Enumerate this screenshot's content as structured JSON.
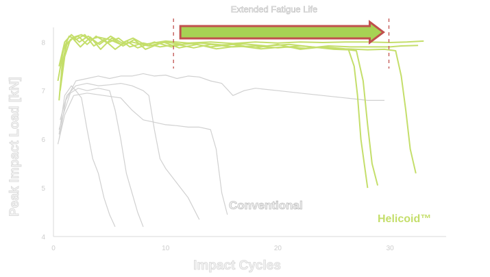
{
  "chart_data": {
    "type": "line",
    "annotation_title": "Extended Fatigue Life",
    "xlabel": "Impact Cycles",
    "ylabel": "Peak Impact Load [kN]",
    "xlim": [
      0,
      35
    ],
    "ylim": [
      4,
      8.3
    ],
    "x_ticks": [
      0,
      10,
      20,
      30
    ],
    "x_tick_labels": [
      "0",
      "10",
      "20",
      "30"
    ],
    "y_ticks": [
      4,
      5,
      6,
      7,
      8
    ],
    "y_tick_labels": [
      "4",
      "5",
      "6",
      "7",
      "8"
    ],
    "vlines": [
      10.7,
      29.9
    ],
    "labels": {
      "conventional": "Conventional",
      "helicoid": "Helicoid™"
    },
    "colors": {
      "helicoid": "#c4de6a",
      "conventional": "#d0d0d0",
      "arrow_fill": "#a7d254",
      "arrow_stroke": "#c0504d",
      "vline": "#c0504d"
    },
    "series": [
      {
        "group": "helicoid",
        "points": [
          [
            0.5,
            6.8
          ],
          [
            0.8,
            7.6
          ],
          [
            1.2,
            7.95
          ],
          [
            1.8,
            8.1
          ],
          [
            2.5,
            8.15
          ],
          [
            3.2,
            8.05
          ],
          [
            4.0,
            8.1
          ],
          [
            5.0,
            8.05
          ],
          [
            6.0,
            7.95
          ],
          [
            7.0,
            8.0
          ],
          [
            8.5,
            7.92
          ],
          [
            10.0,
            8.0
          ],
          [
            11.5,
            7.95
          ],
          [
            13.0,
            7.98
          ],
          [
            15.0,
            7.94
          ],
          [
            17.0,
            7.96
          ],
          [
            19.0,
            7.92
          ],
          [
            21.0,
            7.95
          ],
          [
            23.0,
            7.9
          ],
          [
            25.0,
            7.85
          ],
          [
            26.3,
            7.84
          ],
          [
            26.8,
            7.5
          ],
          [
            27.1,
            6.9
          ],
          [
            27.4,
            6.0
          ],
          [
            27.7,
            5.5
          ],
          [
            28.0,
            5.0
          ]
        ]
      },
      {
        "group": "helicoid",
        "points": [
          [
            0.6,
            7.0
          ],
          [
            1.0,
            7.7
          ],
          [
            1.5,
            8.05
          ],
          [
            2.2,
            8.12
          ],
          [
            3.0,
            7.95
          ],
          [
            3.8,
            8.12
          ],
          [
            4.8,
            7.98
          ],
          [
            5.8,
            8.08
          ],
          [
            6.8,
            7.9
          ],
          [
            8.0,
            7.98
          ],
          [
            9.5,
            7.9
          ],
          [
            11.0,
            7.95
          ],
          [
            12.5,
            7.88
          ],
          [
            14.0,
            7.95
          ],
          [
            16.0,
            7.9
          ],
          [
            18.0,
            7.92
          ],
          [
            20.0,
            7.88
          ],
          [
            22.0,
            7.92
          ],
          [
            24.0,
            7.88
          ],
          [
            26.0,
            7.85
          ],
          [
            27.0,
            7.82
          ],
          [
            27.6,
            7.2
          ],
          [
            28.0,
            6.3
          ],
          [
            28.4,
            5.5
          ],
          [
            28.9,
            5.05
          ]
        ]
      },
      {
        "group": "helicoid",
        "points": [
          [
            0.4,
            7.2
          ],
          [
            0.9,
            7.85
          ],
          [
            1.4,
            8.12
          ],
          [
            2.0,
            8.05
          ],
          [
            2.8,
            8.15
          ],
          [
            3.6,
            7.92
          ],
          [
            4.5,
            8.05
          ],
          [
            5.5,
            7.85
          ],
          [
            6.5,
            8.02
          ],
          [
            7.5,
            7.88
          ],
          [
            9.0,
            8.0
          ],
          [
            10.5,
            7.9
          ],
          [
            12.0,
            7.98
          ],
          [
            14.0,
            7.9
          ],
          [
            16.0,
            7.95
          ],
          [
            18.0,
            7.88
          ],
          [
            20.0,
            7.95
          ],
          [
            22.0,
            7.85
          ],
          [
            24.0,
            7.9
          ],
          [
            26.0,
            7.86
          ],
          [
            28.0,
            7.84
          ],
          [
            29.5,
            7.85
          ],
          [
            30.5,
            7.82
          ],
          [
            31.0,
            7.3
          ],
          [
            31.4,
            6.6
          ],
          [
            31.8,
            5.8
          ],
          [
            32.3,
            5.3
          ]
        ]
      },
      {
        "group": "helicoid",
        "points": [
          [
            0.7,
            7.3
          ],
          [
            1.1,
            7.95
          ],
          [
            1.7,
            8.08
          ],
          [
            2.4,
            7.9
          ],
          [
            3.3,
            8.1
          ],
          [
            4.2,
            7.85
          ],
          [
            5.2,
            8.08
          ],
          [
            6.2,
            7.92
          ],
          [
            7.2,
            8.05
          ],
          [
            8.2,
            7.85
          ],
          [
            9.8,
            8.0
          ],
          [
            11.2,
            7.88
          ],
          [
            12.8,
            7.95
          ],
          [
            14.5,
            7.86
          ],
          [
            16.5,
            7.92
          ],
          [
            18.5,
            7.86
          ],
          [
            20.5,
            7.9
          ],
          [
            22.5,
            7.87
          ],
          [
            24.5,
            7.92
          ],
          [
            26.5,
            7.9
          ],
          [
            28.5,
            7.9
          ],
          [
            30.0,
            7.9
          ],
          [
            31.0,
            7.92
          ],
          [
            32.5,
            7.93
          ]
        ]
      },
      {
        "group": "helicoid",
        "points": [
          [
            0.5,
            7.5
          ],
          [
            1.0,
            8.0
          ],
          [
            1.6,
            8.15
          ],
          [
            2.3,
            8.0
          ],
          [
            3.1,
            8.12
          ],
          [
            4.1,
            7.95
          ],
          [
            5.1,
            8.12
          ],
          [
            6.1,
            7.98
          ],
          [
            7.1,
            8.08
          ],
          [
            8.1,
            7.95
          ],
          [
            10.0,
            8.02
          ],
          [
            12.0,
            7.98
          ],
          [
            14.0,
            8.0
          ],
          [
            16.0,
            7.97
          ],
          [
            18.0,
            8.0
          ],
          [
            20.0,
            7.98
          ],
          [
            22.0,
            8.0
          ],
          [
            24.0,
            7.99
          ],
          [
            26.0,
            8.0
          ],
          [
            28.0,
            8.0
          ],
          [
            30.0,
            7.99
          ],
          [
            31.5,
            8.0
          ],
          [
            33.0,
            8.02
          ]
        ]
      },
      {
        "group": "conventional",
        "points": [
          [
            0.5,
            6.2
          ],
          [
            1.0,
            6.6
          ],
          [
            1.5,
            6.95
          ],
          [
            2.2,
            7.05
          ],
          [
            3.0,
            7.0
          ],
          [
            4.0,
            7.05
          ],
          [
            5.0,
            7.0
          ],
          [
            5.5,
            6.6
          ],
          [
            6.0,
            6.0
          ],
          [
            6.5,
            5.3
          ],
          [
            7.0,
            4.9
          ],
          [
            7.5,
            4.5
          ],
          [
            8.0,
            4.2
          ]
        ]
      },
      {
        "group": "conventional",
        "points": [
          [
            0.6,
            6.4
          ],
          [
            1.2,
            6.9
          ],
          [
            2.0,
            7.1
          ],
          [
            3.0,
            7.15
          ],
          [
            4.0,
            7.1
          ],
          [
            5.0,
            7.12
          ],
          [
            6.0,
            7.15
          ],
          [
            7.0,
            7.1
          ],
          [
            8.0,
            7.0
          ],
          [
            8.5,
            6.9
          ],
          [
            9.0,
            6.2
          ],
          [
            9.5,
            5.6
          ],
          [
            10.0,
            5.4
          ],
          [
            11.0,
            5.1
          ],
          [
            12.0,
            4.8
          ],
          [
            13.0,
            4.35
          ]
        ]
      },
      {
        "group": "conventional",
        "points": [
          [
            0.5,
            6.0
          ],
          [
            1.1,
            6.8
          ],
          [
            2.0,
            7.2
          ],
          [
            3.0,
            7.25
          ],
          [
            4.0,
            7.3
          ],
          [
            5.0,
            7.25
          ],
          [
            6.0,
            7.3
          ],
          [
            7.0,
            7.3
          ],
          [
            8.0,
            7.35
          ],
          [
            9.0,
            7.3
          ],
          [
            10.0,
            7.32
          ],
          [
            11.0,
            7.25
          ],
          [
            12.0,
            7.3
          ],
          [
            13.0,
            7.28
          ],
          [
            14.0,
            7.2
          ],
          [
            15.0,
            7.15
          ],
          [
            16.0,
            6.9
          ],
          [
            17.0,
            7.0
          ],
          [
            18.0,
            7.05
          ],
          [
            20.0,
            7.0
          ],
          [
            22.0,
            6.95
          ],
          [
            24.0,
            6.9
          ],
          [
            26.0,
            6.85
          ],
          [
            28.0,
            6.8
          ],
          [
            29.5,
            6.8
          ]
        ]
      },
      {
        "group": "conventional",
        "points": [
          [
            0.4,
            5.9
          ],
          [
            1.0,
            6.5
          ],
          [
            1.8,
            6.9
          ],
          [
            3.0,
            6.95
          ],
          [
            4.5,
            6.9
          ],
          [
            6.0,
            6.85
          ],
          [
            7.0,
            6.6
          ],
          [
            8.0,
            6.4
          ],
          [
            9.0,
            6.35
          ],
          [
            10.0,
            6.3
          ],
          [
            11.0,
            6.28
          ],
          [
            12.0,
            6.25
          ],
          [
            13.0,
            6.25
          ],
          [
            14.0,
            6.2
          ],
          [
            14.5,
            5.8
          ],
          [
            15.0,
            4.9
          ],
          [
            15.5,
            4.45
          ]
        ]
      },
      {
        "group": "conventional",
        "points": [
          [
            0.5,
            6.1
          ],
          [
            1.0,
            6.9
          ],
          [
            1.6,
            7.1
          ],
          [
            2.0,
            7.0
          ],
          [
            2.5,
            6.85
          ],
          [
            3.0,
            6.2
          ],
          [
            3.5,
            5.6
          ],
          [
            4.0,
            5.3
          ],
          [
            4.5,
            4.8
          ],
          [
            5.0,
            4.45
          ],
          [
            5.5,
            4.2
          ]
        ]
      }
    ]
  }
}
